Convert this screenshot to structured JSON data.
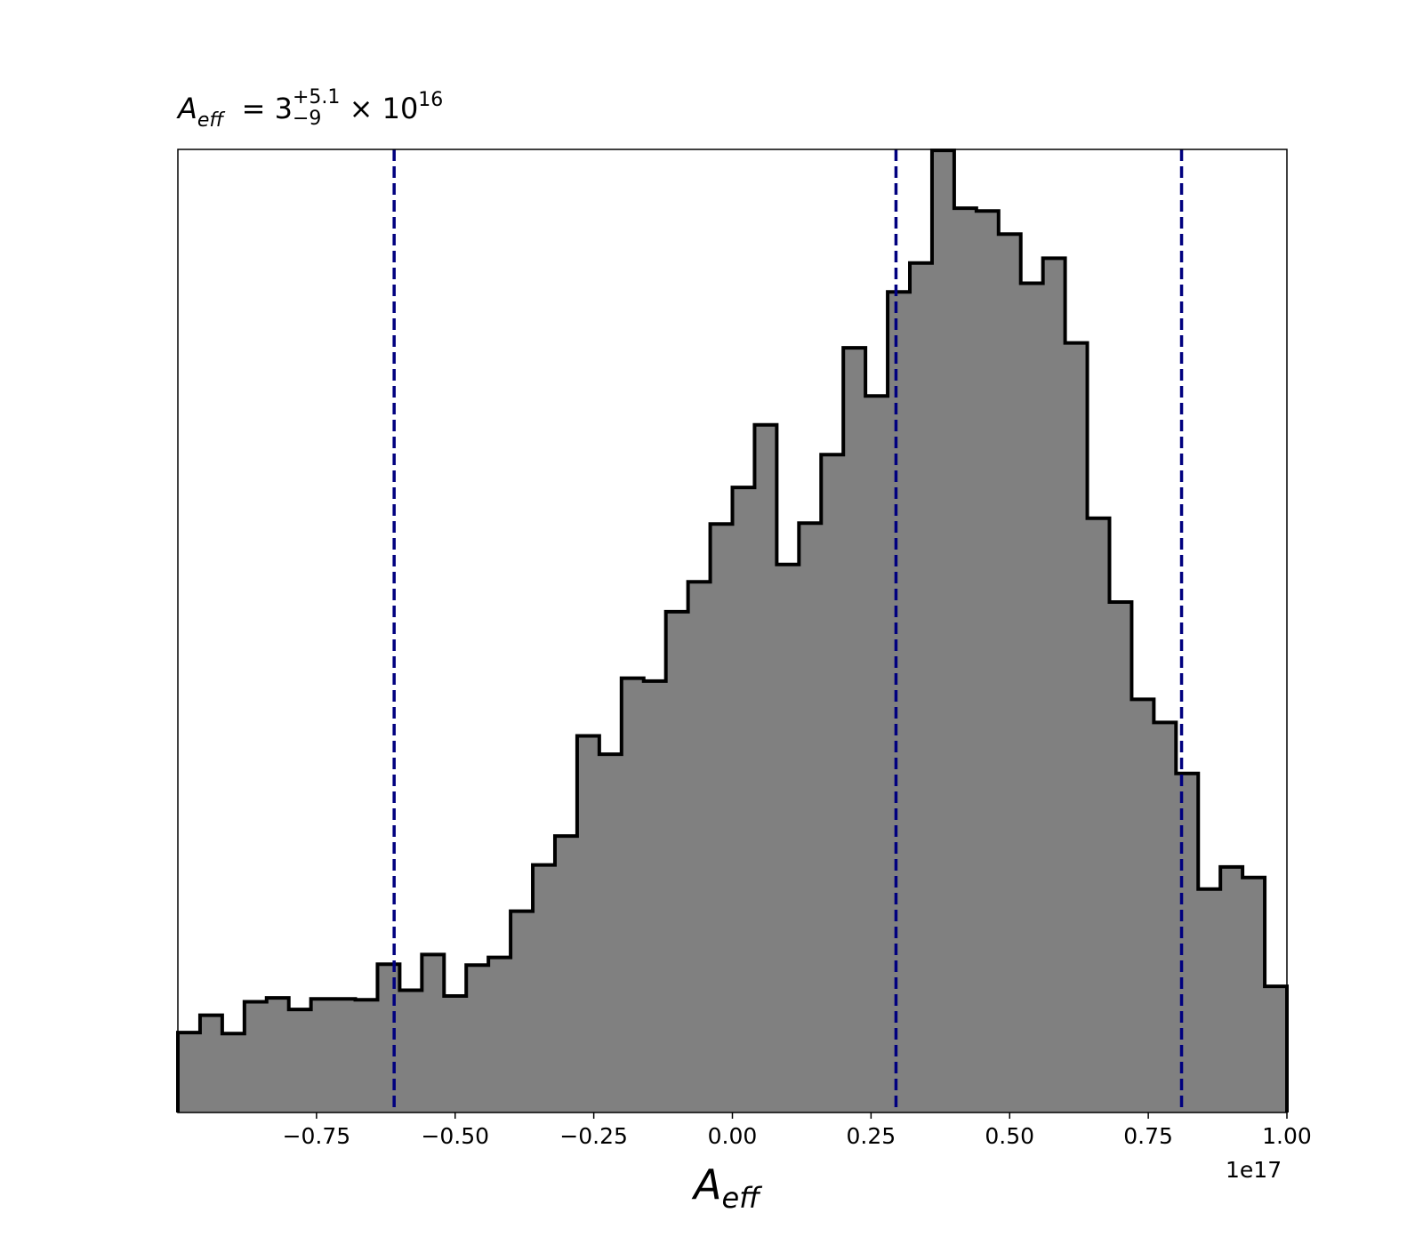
{
  "title": {
    "symbol": "A",
    "symbol_sub": "eff",
    "equals": "=",
    "median": "3",
    "err_plus": "+5.1",
    "err_minus": "−9",
    "times": "×",
    "power_base": "10",
    "power_exp": "16"
  },
  "chart_data": {
    "type": "histogram",
    "xlabel": {
      "symbol": "A",
      "sub": "eff"
    },
    "x_offset_label": "1e17",
    "xlim": [
      -1.0,
      1.0
    ],
    "ylim": [
      0,
      1.0
    ],
    "x_ticks": [
      -0.75,
      -0.5,
      -0.25,
      0.0,
      0.25,
      0.5,
      0.75,
      1.0
    ],
    "x_tick_labels": [
      "−0.75",
      "−0.50",
      "−0.25",
      "0.00",
      "0.25",
      "0.50",
      "0.75",
      "1.00"
    ],
    "y_ticks_shown": false,
    "bin_edges_start": -1.0,
    "bin_width": 0.04,
    "bin_values": [
      0.083,
      0.101,
      0.082,
      0.115,
      0.119,
      0.107,
      0.118,
      0.118,
      0.117,
      0.154,
      0.127,
      0.164,
      0.121,
      0.153,
      0.161,
      0.209,
      0.257,
      0.287,
      0.391,
      0.372,
      0.451,
      0.448,
      0.52,
      0.551,
      0.611,
      0.649,
      0.714,
      0.569,
      0.612,
      0.683,
      0.794,
      0.744,
      0.852,
      0.882,
      0.999,
      0.939,
      0.936,
      0.912,
      0.861,
      0.887,
      0.799,
      0.617,
      0.53,
      0.429,
      0.405,
      0.352,
      0.232,
      0.255,
      0.244,
      0.131
    ],
    "fill_color": "#808080",
    "edge_color": "#000000",
    "vlines": [
      {
        "x": -0.61,
        "style": "dashed",
        "color": "#00007f"
      },
      {
        "x": 0.295,
        "style": "dashed",
        "color": "#00007f"
      },
      {
        "x": 0.81,
        "style": "dashed",
        "color": "#00007f"
      }
    ]
  }
}
